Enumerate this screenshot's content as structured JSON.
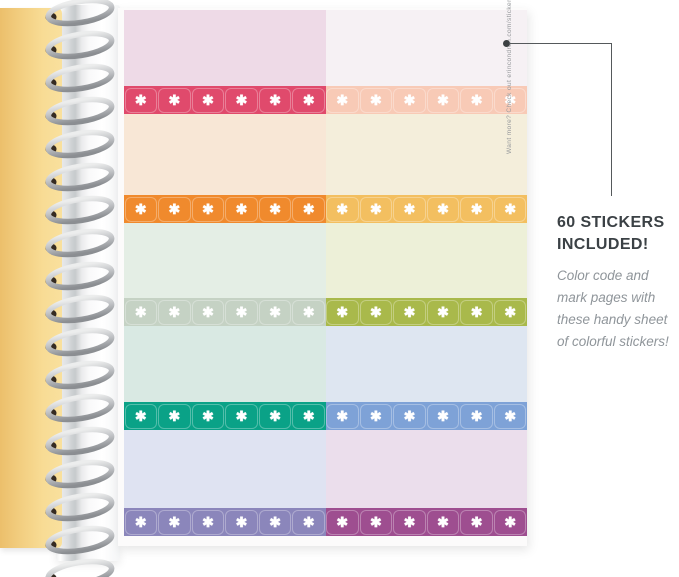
{
  "background": "#ffffff",
  "notebook": {
    "cover_color": "#f3d083",
    "pages_color": "#ffffff",
    "binding": {
      "coil_count": 18,
      "coil_color": "#c3c5c8",
      "hole_color": "#352b22"
    }
  },
  "sticker_sheet": {
    "margin_note": "Want more? Check out erincondren.com/stickers.",
    "sticker_glyph": "✱",
    "stickers_total": 60,
    "rows": [
      {
        "name": "pink",
        "pastel_left": "#eedae7",
        "pastel_right": "#f6f1f4",
        "strip_left": "#e04a6c",
        "strip_right": "#f8cab6",
        "tabs_per_half": 6
      },
      {
        "name": "orange",
        "pastel_left": "#f8e7d6",
        "pastel_right": "#f4eedb",
        "strip_left": "#f08a2d",
        "strip_right": "#f3bf60",
        "tabs_per_half": 6
      },
      {
        "name": "green",
        "pastel_left": "#e4eee5",
        "pastel_right": "#edf0d8",
        "strip_left": "#c5d2c4",
        "strip_right": "#a9b94b",
        "tabs_per_half": 6
      },
      {
        "name": "teal-blue",
        "pastel_left": "#d9e9e3",
        "pastel_right": "#dee6f1",
        "strip_left": "#0aa287",
        "strip_right": "#7ea2d7",
        "tabs_per_half": 6
      },
      {
        "name": "purple",
        "pastel_left": "#dfe3f2",
        "pastel_right": "#ebdeec",
        "strip_left": "#8b86bb",
        "strip_right": "#9e4e90",
        "tabs_per_half": 6
      }
    ]
  },
  "annotation": {
    "heading": "60 STICKERS INCLUDED!",
    "body": "Color code and mark pages with these handy sheet of colorful stickers!",
    "heading_color": "#3b4145",
    "body_color": "#8f959a",
    "line_color": "#55595b"
  }
}
